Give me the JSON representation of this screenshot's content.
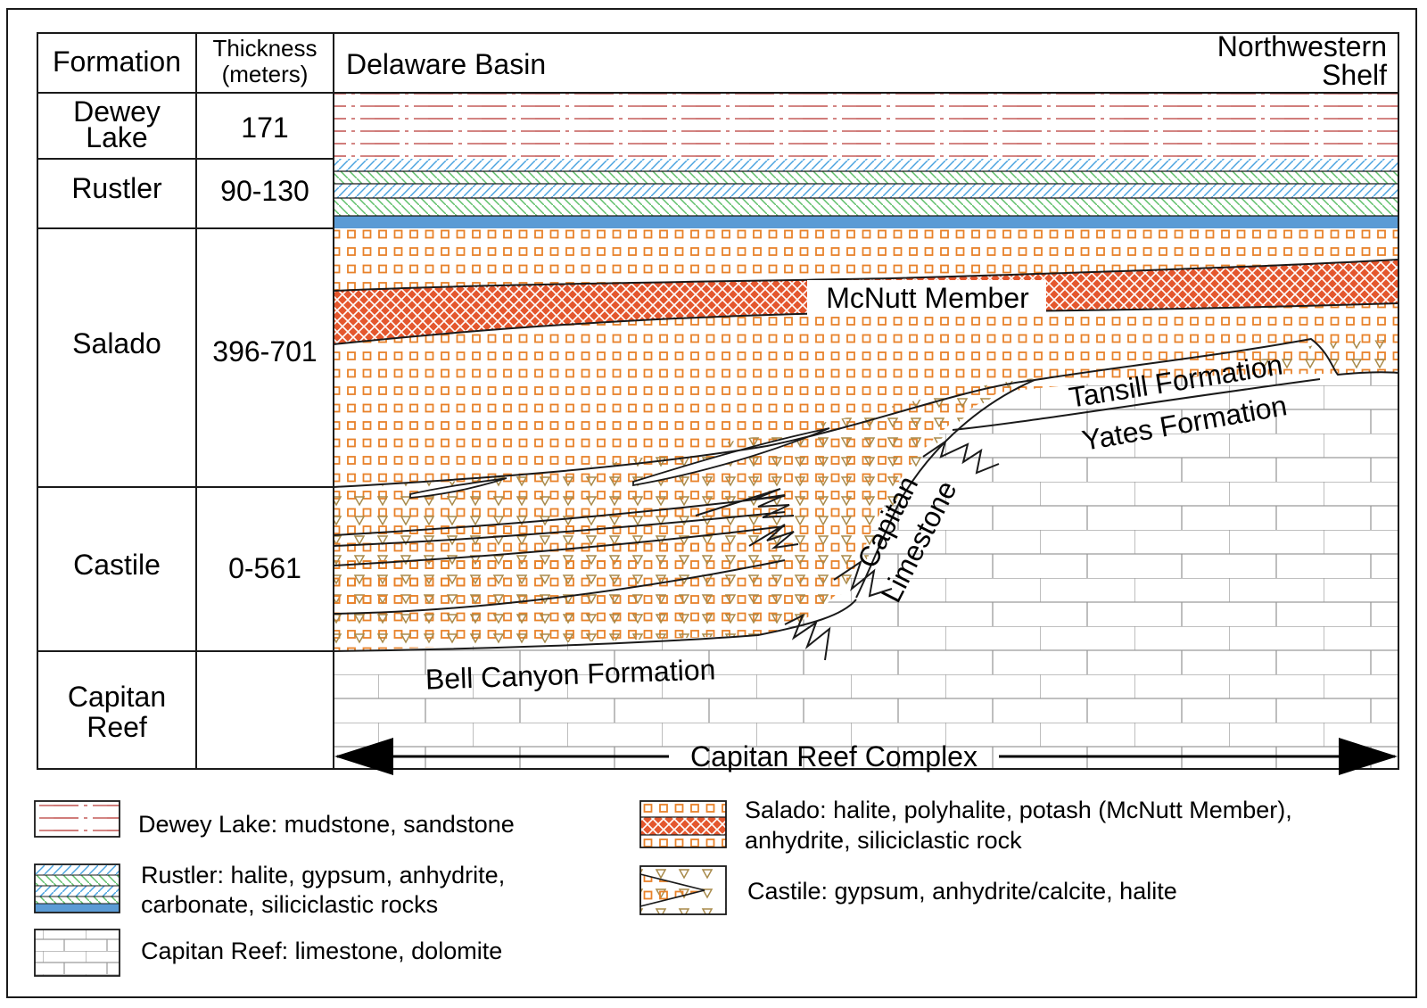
{
  "table": {
    "headers": {
      "formation": "Formation",
      "thickness_line1": "Thickness",
      "thickness_line2": "(meters)",
      "left_side": "Delaware Basin",
      "right_side_line1": "Northwestern",
      "right_side_line2": "Shelf"
    },
    "rows": [
      {
        "formation_line1": "Dewey",
        "formation_line2": "Lake",
        "thickness": "171"
      },
      {
        "formation_line1": "Rustler",
        "formation_line2": "",
        "thickness": "90-130"
      },
      {
        "formation_line1": "Salado",
        "formation_line2": "",
        "thickness": "396-701"
      },
      {
        "formation_line1": "Castile",
        "formation_line2": "",
        "thickness": "0-561"
      },
      {
        "formation_line1": "Capitan",
        "formation_line2": "Reef",
        "thickness": ""
      }
    ]
  },
  "section_labels": {
    "mcnutt": "McNutt Member",
    "tansill": "Tansill Formation",
    "yates": "Yates Formation",
    "capitan_line1": "Capitan",
    "capitan_line2": "Limestone",
    "bell_canyon": "Bell Canyon Formation",
    "reef_complex": "Capitan Reef Complex"
  },
  "legend": {
    "dewey": {
      "line1": "Dewey Lake: mudstone, sandstone",
      "line2": ""
    },
    "rustler": {
      "line1": "Rustler: halite, gypsum, anhydrite,",
      "line2": "carbonate, siliciclastic rocks"
    },
    "capitan": {
      "line1": "Capitan Reef: limestone, dolomite",
      "line2": ""
    },
    "salado": {
      "line1": "Salado: halite, polyhalite, potash (McNutt Member),",
      "line2": "anhydrite, siliciclastic rock"
    },
    "castile": {
      "line1": "Castile: gypsum, anhydrite/calcite, halite",
      "line2": ""
    }
  },
  "colors": {
    "dewey_line": "#c0504d",
    "rustler_blue": "#4aa3df",
    "rustler_green": "#5fbf6a",
    "rustler_solid": "#5b9bd5",
    "salado_square": "#e8822a",
    "mcnutt_fill": "#e4572e",
    "castile_triangle": "#a88a4a",
    "reef_brick": "#9a9a9a",
    "outline": "#1a1a1a"
  }
}
